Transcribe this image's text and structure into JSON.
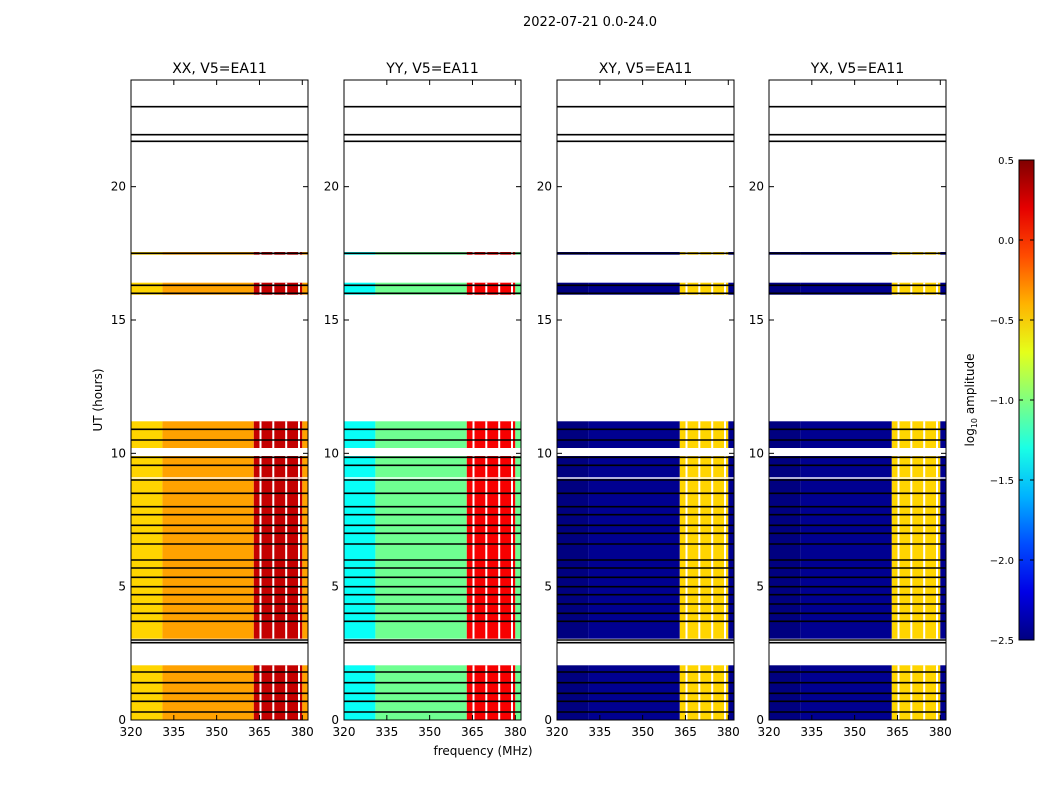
{
  "chart_data": {
    "type": "heatmap",
    "suptitle": "2022-07-21 0.0-24.0",
    "xlabel": "frequency (MHz)",
    "ylabel": "UT (hours)",
    "xlim": [
      320,
      382
    ],
    "ylim": [
      0,
      24
    ],
    "xticks": [
      320,
      335,
      350,
      365,
      380
    ],
    "yticks": [
      0,
      5,
      10,
      15,
      20
    ],
    "colorbar": {
      "label_prefix": "log",
      "label_subscript": "10",
      "label_suffix": " amplitude",
      "range": [
        -2.5,
        0.5
      ],
      "ticks": [
        "0.5",
        "0.0",
        "−0.5",
        "−1.0",
        "−1.5",
        "−2.0",
        "−2.5"
      ],
      "colormap": "jet"
    },
    "panels": [
      {
        "title": "XX, V5=EA11",
        "base_level": -0.35,
        "band_level": 0.3,
        "range_level": 0.45,
        "low_level": -0.5
      },
      {
        "title": "YY, V5=EA11",
        "base_level": -1.05,
        "band_level": 0.15,
        "range_level": -1.2,
        "low_level": -1.35
      },
      {
        "title": "XY, V5=EA11",
        "base_level": -2.45,
        "band_level": -0.5,
        "range_level": -2.3,
        "low_level": -2.5
      },
      {
        "title": "YX, V5=EA11",
        "base_level": -2.45,
        "band_level": -0.5,
        "range_level": -2.3,
        "low_level": -2.5
      }
    ],
    "data_time_ranges_hours": [
      [
        0.0,
        2.05
      ],
      [
        3.05,
        9.05
      ],
      [
        9.1,
        9.9
      ],
      [
        10.2,
        11.2
      ],
      [
        15.95,
        16.4
      ],
      [
        17.45,
        17.55
      ]
    ],
    "flagged_time_lines_hours": [
      0.3,
      0.7,
      1.0,
      1.4,
      1.8,
      2.9,
      3.0,
      3.7,
      4.0,
      4.35,
      4.7,
      5.0,
      5.35,
      5.7,
      6.0,
      6.6,
      7.0,
      7.3,
      7.7,
      8.0,
      8.5,
      9.0,
      9.55,
      9.85,
      10.5,
      10.9,
      16.0,
      16.3,
      17.5,
      21.7,
      21.95,
      23.0
    ],
    "bright_band_mhz": [
      363,
      380
    ]
  }
}
